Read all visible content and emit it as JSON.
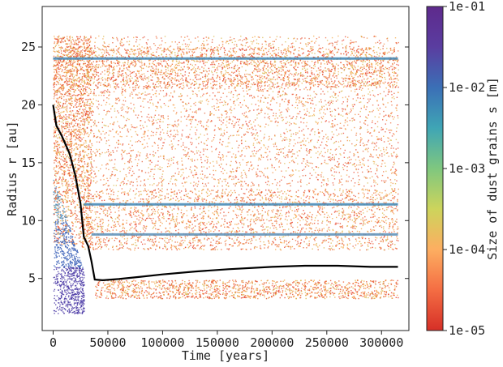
{
  "chart_data": {
    "type": "scatter",
    "title": "",
    "xlabel": "Time [years]",
    "ylabel": "Radius r [au]",
    "xlim": [
      -10000,
      325000
    ],
    "ylim": [
      0.5,
      28.5
    ],
    "x_ticks": [
      0,
      50000,
      100000,
      150000,
      200000,
      250000,
      300000
    ],
    "x_tick_labels": [
      "0",
      "50000",
      "100000",
      "150000",
      "200000",
      "250000",
      "300000"
    ],
    "y_ticks": [
      5,
      10,
      15,
      20,
      25
    ],
    "y_tick_labels": [
      "5",
      "10",
      "15",
      "20",
      "25"
    ],
    "grid": false,
    "legend": "none",
    "colorbar": {
      "label": "Size of dust grains s [m]",
      "scale": "log",
      "range": [
        1e-05,
        0.1
      ],
      "tick_labels": [
        "1e-05",
        "1e-04",
        "1e-03",
        "1e-02",
        "1e-01"
      ],
      "colors": [
        "#d62f27",
        "#f46d43",
        "#fdae61",
        "#cdd45c",
        "#7fc77f",
        "#3fa5b5",
        "#3b6fb6",
        "#5a3da0",
        "#5e2a8c"
      ]
    },
    "planet_track": {
      "color": "#000000",
      "x": [
        0,
        3000,
        8000,
        15000,
        20000,
        25000,
        28000,
        32000,
        35000,
        38000,
        45000,
        60000,
        80000,
        100000,
        130000,
        160000,
        200000,
        230000,
        260000,
        290000,
        315000
      ],
      "y": [
        20.0,
        18.2,
        17.3,
        15.8,
        14.0,
        11.5,
        8.6,
        7.8,
        6.5,
        4.9,
        4.85,
        4.95,
        5.15,
        5.35,
        5.6,
        5.8,
        6.0,
        6.1,
        6.1,
        6.0,
        6.0
      ]
    },
    "dust_rings": [
      {
        "name": "outer",
        "x_range": [
          0,
          315000
        ],
        "y_center": 24.0,
        "color": "#3f86b4"
      },
      {
        "name": "middle",
        "x_range": [
          28000,
          315000
        ],
        "y_center": 11.4,
        "color": "#3f86b4"
      },
      {
        "name": "inner",
        "x_range": [
          35000,
          315000
        ],
        "y_center": 8.8,
        "color": "#5a8fb8"
      }
    ]
  }
}
